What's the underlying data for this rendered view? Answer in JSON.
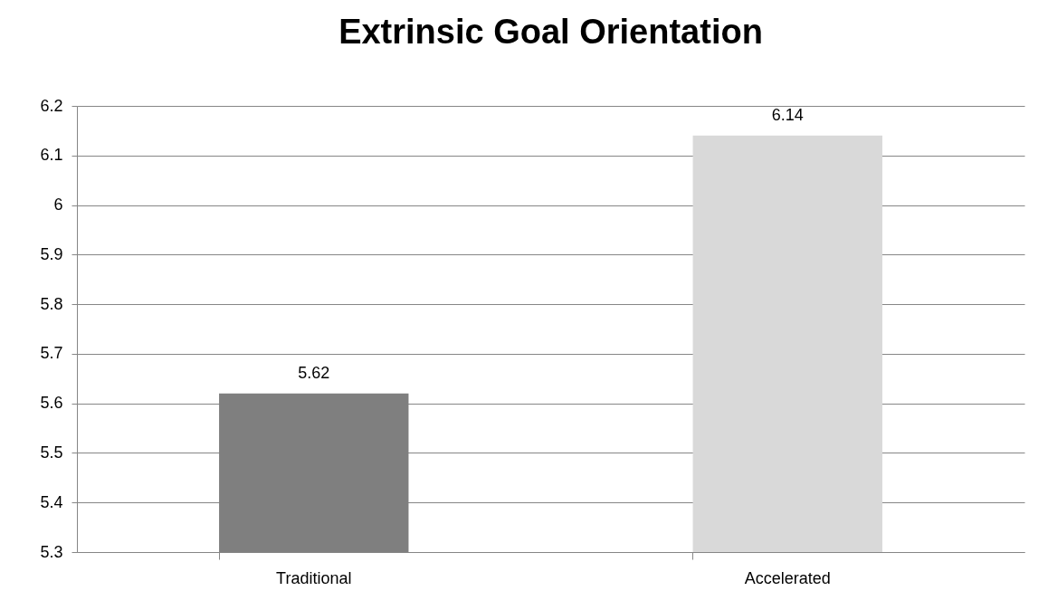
{
  "chart_data": {
    "type": "bar",
    "title": "Extrinsic Goal Orientation",
    "categories": [
      "Traditional",
      "Accelerated"
    ],
    "values": [
      5.62,
      6.14
    ],
    "colors": [
      "#7f7f7f",
      "#d9d9d9"
    ],
    "ylim": [
      5.3,
      6.2
    ],
    "yticks": [
      5.3,
      5.4,
      5.5,
      5.6,
      5.7,
      5.8,
      5.9,
      6,
      6.1,
      6.2
    ],
    "grid": "y",
    "data_labels": true
  }
}
